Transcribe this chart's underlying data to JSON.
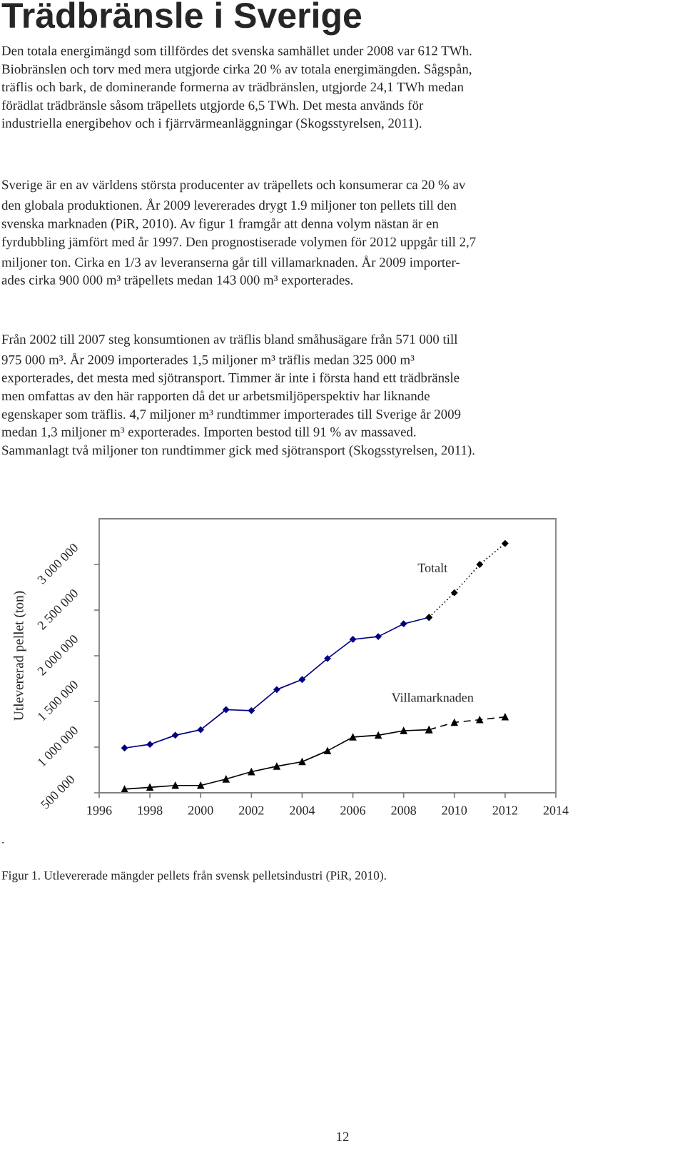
{
  "chart_data": {
    "type": "line",
    "title": "Trädbränsle i Sverige",
    "ylabel": "Utlevererad pellet (ton)",
    "xlim": [
      1996,
      2014
    ],
    "xticks": [
      1996,
      1998,
      2000,
      2002,
      2004,
      2006,
      2008,
      2010,
      2012,
      2014
    ],
    "ylim": [
      500000,
      3500000
    ],
    "yticks": [
      {
        "value": 500000,
        "label": "500 000"
      },
      {
        "value": 1000000,
        "label": "1 000 000"
      },
      {
        "value": 1500000,
        "label": "1 500 000"
      },
      {
        "value": 2000000,
        "label": "2 000 000"
      },
      {
        "value": 2500000,
        "label": "2 500 000"
      },
      {
        "value": 3000000,
        "label": "3 000 000"
      }
    ],
    "series": [
      {
        "color": "#000080",
        "marker": "diamond",
        "line_style": "solid",
        "x": [
          1997,
          1998,
          1999,
          2000,
          2001,
          2002,
          2003,
          2004,
          2005,
          2006,
          2007,
          2008,
          2009
        ],
        "values": [
          990000,
          1030000,
          1130000,
          1190000,
          1410000,
          1400000,
          1630000,
          1740000,
          1970000,
          2180000,
          2210000,
          2350000,
          2420000
        ]
      },
      {
        "name": "Totalt",
        "color": "#000000",
        "marker": "diamond",
        "line_style": "dotted",
        "x": [
          2009,
          2010,
          2011,
          2012
        ],
        "values": [
          2420000,
          2690000,
          3000000,
          3230000
        ]
      },
      {
        "color": "#000000",
        "marker": "triangle",
        "line_style": "solid",
        "x": [
          1997,
          1998,
          1999,
          2000,
          2001,
          2002,
          2003,
          2004,
          2005,
          2006,
          2007,
          2008,
          2009
        ],
        "values": [
          540000,
          560000,
          580000,
          580000,
          650000,
          730000,
          790000,
          840000,
          960000,
          1110000,
          1130000,
          1180000,
          1190000
        ]
      },
      {
        "name": "Villamarknaden",
        "color": "#000000",
        "marker": "triangle",
        "line_style": "dashed",
        "x": [
          2009,
          2010,
          2011,
          2012
        ],
        "values": [
          1190000,
          1270000,
          1300000,
          1330000
        ]
      }
    ],
    "annotations": [
      "Den totala energimängd som tillfördes det svenska samhället under 2008 var 612 TWh.\nBiobränslen och torv med mera utgjorde cirka 20 % av totala energimängden. Sågspån,\nträflis och bark, de dominerande formerna av trädbränslen, utgjorde 24,1 TWh medan\nförädlat trädbränsle såsom träpellets utgjorde 6,5 TWh. Det mesta används för\nindustriella energibehov och i fjärrvärmeanläggningar (Skogsstyrelsen, 2011).",
      "Sverige är en av världens största producenter av träpellets och konsumerar ca 20 % av\nden globala produktionen. År 2009 levererades drygt 1.9 miljoner ton pellets till den\nsvenska marknaden (PiR, 2010). Av figur 1 framgår att denna volym nästan är en\nfyrdubbling jämfört med år 1997. Den prognostiserade volymen för 2012 uppgår till 2,7\nmiljoner ton. Cirka en 1/3 av leveranserna går till villamarknaden. År 2009 importer-\nades cirka 900 000 m³ träpellets medan 143 000 m³ exporterades.",
      "Från 2002 till 2007 steg konsumtionen av träflis bland småhusägare från 571 000 till\n975 000 m³. År 2009 importerades 1,5 miljoner m³ träflis medan 325 000 m³\nexporterades, det mesta med sjötransport. Timmer är inte i första hand ett trädbränsle\nmen omfattas av den här rapporten då det ur arbetsmiljöperspektiv har liknande\negenskaper som träflis. 4,7 miljoner m³ rundtimmer importerades till Sverige år 2009\nmedan 1,3 miljoner m³ exporterades. Importen bestod till 91 % av massaved.\nSammanlagt två miljoner ton rundtimmer gick med sjötransport (Skogsstyrelsen, 2011).",
      ".",
      "Figur 1. Utlevererade mängder pellets från svensk pelletsindustri (PiR, 2010).",
      "12"
    ]
  }
}
